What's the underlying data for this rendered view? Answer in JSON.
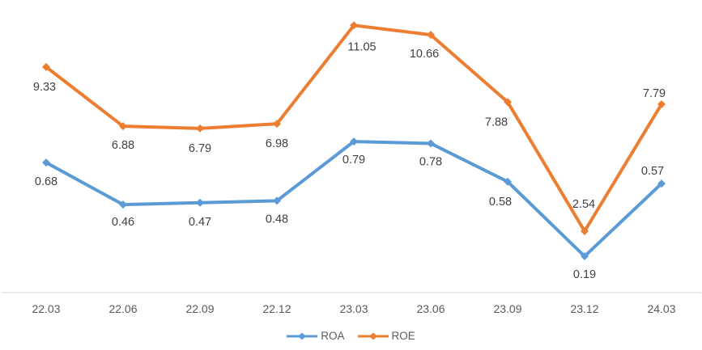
{
  "chart_data": {
    "type": "line",
    "title": "",
    "categories": [
      "22.03",
      "22.06",
      "22.09",
      "22.12",
      "23.03",
      "23.06",
      "23.09",
      "23.12",
      "24.03"
    ],
    "series": [
      {
        "name": "ROA",
        "color": "#5B9BD5",
        "axis": "secondary",
        "values": [
          0.68,
          0.46,
          0.47,
          0.48,
          0.79,
          0.78,
          0.58,
          0.19,
          0.57
        ],
        "label_offsets": [
          [
            0,
            23
          ],
          [
            0,
            21
          ],
          [
            0,
            23
          ],
          [
            0,
            22
          ],
          [
            0,
            22
          ],
          [
            0,
            22
          ],
          [
            -9,
            24
          ],
          [
            0,
            22
          ],
          [
            -11,
            -16
          ]
        ]
      },
      {
        "name": "ROE",
        "color": "#ED7D31",
        "axis": "primary",
        "values": [
          9.33,
          6.88,
          6.79,
          6.98,
          11.05,
          10.66,
          7.88,
          2.54,
          7.79
        ],
        "label_offsets": [
          [
            -2,
            24
          ],
          [
            0,
            23
          ],
          [
            0,
            24
          ],
          [
            0,
            24
          ],
          [
            10,
            26
          ],
          [
            -8,
            23
          ],
          [
            -14,
            24
          ],
          [
            -1,
            -34
          ],
          [
            -9,
            -14
          ]
        ]
      }
    ],
    "xlabel": "",
    "ylabel": "",
    "ylim_primary": [
      0,
      12.1
    ],
    "ylim_secondary": [
      0,
      1.53
    ],
    "grid": false,
    "legend_position": "bottom",
    "colors": {
      "axis_line": "#D9D9D9",
      "data_label_text": "#404040",
      "category_label_text": "#595959"
    }
  }
}
